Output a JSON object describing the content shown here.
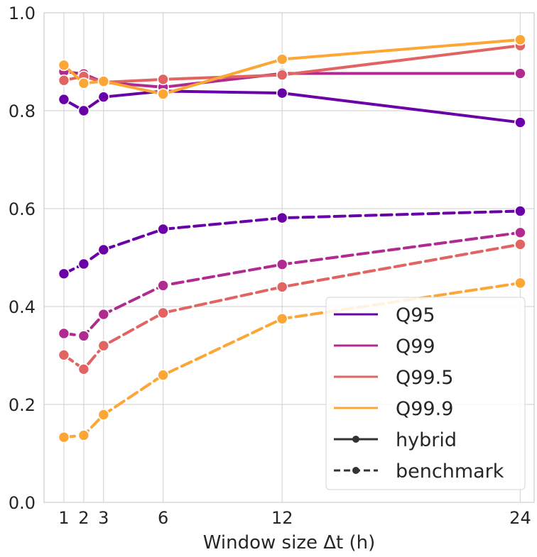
{
  "chart_data": {
    "type": "line",
    "title": "",
    "xlabel": "Window size Δt (h)",
    "ylabel": "",
    "x": [
      1,
      2,
      3,
      6,
      12,
      24
    ],
    "x_ticks": [
      "1",
      "2",
      "3",
      "6",
      "12",
      "24"
    ],
    "y_ticks": [
      "0.0",
      "0.2",
      "0.4",
      "0.6",
      "0.8",
      "1.0"
    ],
    "xlim": [
      0.0,
      24.7
    ],
    "ylim": [
      0.0,
      1.0
    ],
    "grid": true,
    "legend_position": "bottom-right",
    "series": [
      {
        "name": "Q95",
        "method": "hybrid",
        "color": "#6a00a8",
        "values": [
          0.823,
          0.8,
          0.828,
          0.84,
          0.836,
          0.776
        ]
      },
      {
        "name": "Q99",
        "method": "hybrid",
        "color": "#b12a90",
        "values": [
          0.88,
          0.875,
          0.858,
          0.848,
          0.876,
          0.876
        ]
      },
      {
        "name": "Q99.5",
        "method": "hybrid",
        "color": "#e16462",
        "values": [
          0.862,
          0.87,
          0.858,
          0.864,
          0.873,
          0.933
        ]
      },
      {
        "name": "Q99.9",
        "method": "hybrid",
        "color": "#fca636",
        "values": [
          0.893,
          0.856,
          0.86,
          0.834,
          0.905,
          0.945
        ]
      },
      {
        "name": "Q95",
        "method": "benchmark",
        "color": "#6a00a8",
        "values": [
          0.467,
          0.487,
          0.516,
          0.558,
          0.581,
          0.595
        ]
      },
      {
        "name": "Q99",
        "method": "benchmark",
        "color": "#b12a90",
        "values": [
          0.345,
          0.34,
          0.384,
          0.443,
          0.486,
          0.551
        ]
      },
      {
        "name": "Q99.5",
        "method": "benchmark",
        "color": "#e16462",
        "values": [
          0.301,
          0.272,
          0.32,
          0.387,
          0.44,
          0.527
        ]
      },
      {
        "name": "Q99.9",
        "method": "benchmark",
        "color": "#fca636",
        "values": [
          0.133,
          0.137,
          0.179,
          0.26,
          0.375,
          0.448
        ]
      }
    ],
    "legend": [
      {
        "label": "Q95",
        "kind": "color",
        "color": "#6a00a8"
      },
      {
        "label": "Q99",
        "kind": "color",
        "color": "#b12a90"
      },
      {
        "label": "Q99.5",
        "kind": "color",
        "color": "#e16462"
      },
      {
        "label": "Q99.9",
        "kind": "color",
        "color": "#fca636"
      },
      {
        "label": "hybrid",
        "kind": "solid",
        "color": "#333333"
      },
      {
        "label": "benchmark",
        "kind": "dashed",
        "color": "#333333"
      }
    ]
  }
}
